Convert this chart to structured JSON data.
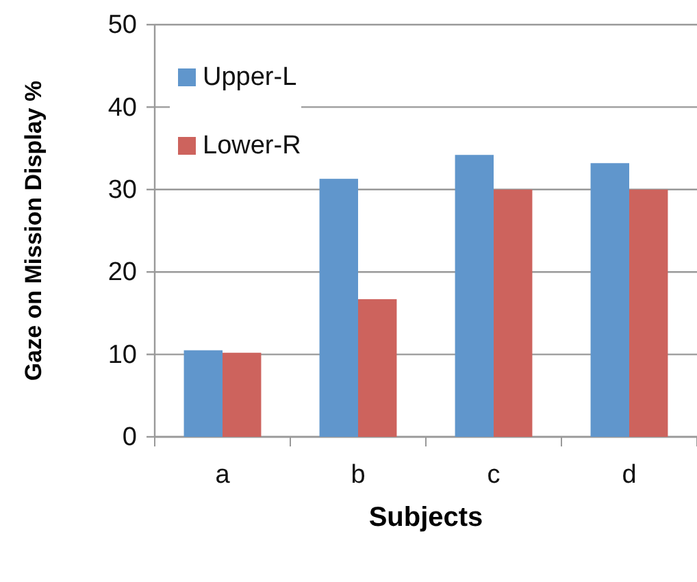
{
  "chart_data": {
    "type": "bar",
    "xlabel": "Subjects",
    "ylabel": "Gaze on Mission Display %",
    "categories": [
      "a",
      "b",
      "c",
      "d"
    ],
    "series": [
      {
        "name": "Upper-L",
        "color": "#6096cc",
        "values": [
          10.5,
          31.3,
          34.2,
          33.2
        ]
      },
      {
        "name": "Lower-R",
        "color": "#cd635d",
        "values": [
          10.2,
          16.7,
          30.0,
          30.0
        ]
      }
    ],
    "ylim": [
      0,
      50
    ],
    "yticks": [
      0,
      10,
      20,
      30,
      40,
      50
    ],
    "grid": "y",
    "legend": "top left"
  }
}
